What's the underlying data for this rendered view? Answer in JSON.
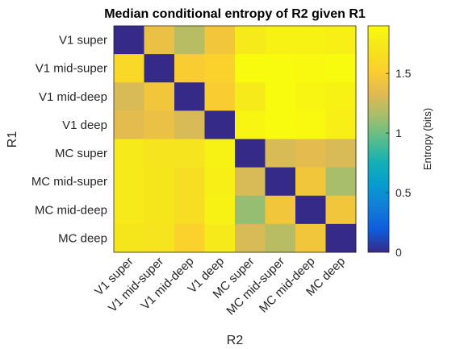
{
  "chart_data": {
    "type": "heatmap",
    "title": "Median conditional entropy of R2 given R1",
    "xlabel": "R2",
    "ylabel": "R1",
    "x_categories": [
      "V1 super",
      "V1 mid-super",
      "V1 mid-deep",
      "V1 deep",
      "MC super",
      "MC mid-super",
      "MC mid-deep",
      "MC deep"
    ],
    "y_categories": [
      "V1 super",
      "V1 mid-super",
      "V1 mid-deep",
      "V1 deep",
      "MC super",
      "MC mid-super",
      "MC mid-deep",
      "MC deep"
    ],
    "values": [
      [
        0.0,
        1.4,
        1.2,
        1.45,
        1.75,
        1.82,
        1.82,
        1.8
      ],
      [
        1.6,
        0.0,
        1.5,
        1.55,
        1.9,
        1.9,
        1.88,
        1.9
      ],
      [
        1.3,
        1.45,
        0.0,
        1.5,
        1.75,
        1.9,
        1.85,
        1.82
      ],
      [
        1.35,
        1.4,
        1.3,
        0.0,
        1.85,
        1.9,
        1.88,
        1.8
      ],
      [
        1.75,
        1.7,
        1.7,
        1.82,
        0.0,
        1.3,
        1.35,
        1.3
      ],
      [
        1.75,
        1.72,
        1.65,
        1.8,
        1.3,
        0.0,
        1.45,
        1.15
      ],
      [
        1.75,
        1.72,
        1.65,
        1.82,
        1.1,
        1.45,
        0.0,
        1.45
      ],
      [
        1.72,
        1.7,
        1.55,
        1.75,
        1.3,
        1.2,
        1.45,
        0.0
      ]
    ],
    "clim": [
      0,
      1.9
    ],
    "colormap": "parula",
    "colorbar": {
      "label": "Entropy (bits)",
      "ticks": [
        0,
        0.5,
        1,
        1.5
      ],
      "tick_labels": [
        "0",
        "0.5",
        "1",
        "1.5"
      ]
    }
  }
}
